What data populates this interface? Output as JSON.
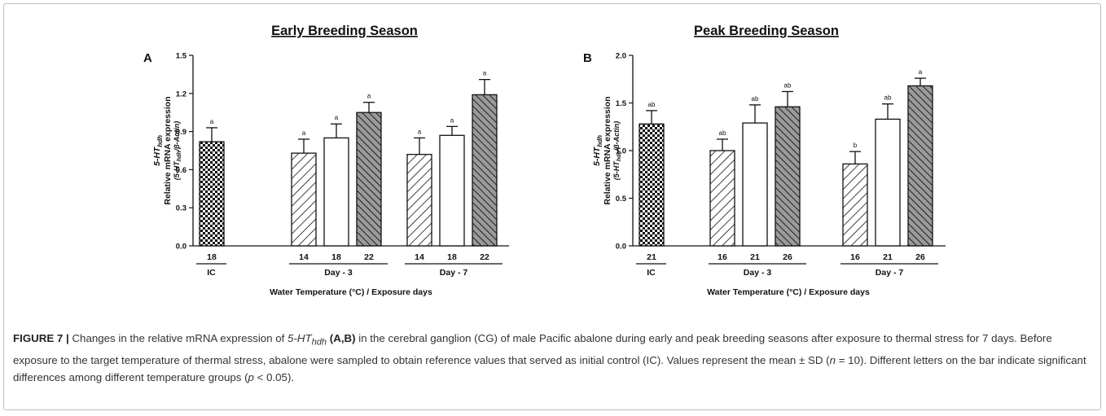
{
  "chart_data": [
    {
      "panel": "A",
      "type": "bar",
      "title": "Early Breeding Season",
      "ylabel_gene": "5-HT",
      "ylabel_gene_sub": "hdh",
      "ylabel_main": "Relative mRNA expression",
      "ylabel_ratio": [
        "(5-HT",
        "hdh",
        "/β-Actin)"
      ],
      "xlabel": "Water Temperature (°C) / Exposure days",
      "ylim": [
        0,
        1.5
      ],
      "yticks": [
        "0.0",
        "0.3",
        "0.6",
        "0.9",
        "1.2",
        "1.5"
      ],
      "groups": [
        "IC",
        "Day - 3",
        "Day - 7"
      ],
      "bars": [
        {
          "group": 0,
          "category": "18",
          "value": 0.82,
          "sd": 0.11,
          "letter": "a",
          "pattern": "checker"
        },
        {
          "group": 1,
          "category": "14",
          "value": 0.73,
          "sd": 0.11,
          "letter": "a",
          "pattern": "hatch"
        },
        {
          "group": 1,
          "category": "18",
          "value": 0.85,
          "sd": 0.11,
          "letter": "a",
          "pattern": "white"
        },
        {
          "group": 1,
          "category": "22",
          "value": 1.05,
          "sd": 0.08,
          "letter": "a",
          "pattern": "darkhatch"
        },
        {
          "group": 2,
          "category": "14",
          "value": 0.72,
          "sd": 0.13,
          "letter": "a",
          "pattern": "hatch"
        },
        {
          "group": 2,
          "category": "18",
          "value": 0.87,
          "sd": 0.07,
          "letter": "a",
          "pattern": "white"
        },
        {
          "group": 2,
          "category": "22",
          "value": 1.19,
          "sd": 0.12,
          "letter": "a",
          "pattern": "darkhatch"
        }
      ]
    },
    {
      "panel": "B",
      "type": "bar",
      "title": "Peak Breeding Season",
      "ylabel_gene": "5-HT",
      "ylabel_gene_sub": "hdh",
      "ylabel_main": "Relative mRNA expression",
      "ylabel_ratio": [
        "(5-HT",
        "hdh",
        "/β-Actin)"
      ],
      "xlabel": "Water Temperature (°C) / Exposure days",
      "ylim": [
        0,
        2.0
      ],
      "yticks": [
        "0.0",
        "0.5",
        "1.0",
        "1.5",
        "2.0"
      ],
      "groups": [
        "IC",
        "Day - 3",
        "Day - 7"
      ],
      "bars": [
        {
          "group": 0,
          "category": "21",
          "value": 1.28,
          "sd": 0.14,
          "letter": "ab",
          "pattern": "checker"
        },
        {
          "group": 1,
          "category": "16",
          "value": 1.0,
          "sd": 0.12,
          "letter": "ab",
          "pattern": "hatch"
        },
        {
          "group": 1,
          "category": "21",
          "value": 1.29,
          "sd": 0.19,
          "letter": "ab",
          "pattern": "white"
        },
        {
          "group": 1,
          "category": "26",
          "value": 1.46,
          "sd": 0.16,
          "letter": "ab",
          "pattern": "darkhatch"
        },
        {
          "group": 2,
          "category": "16",
          "value": 0.86,
          "sd": 0.13,
          "letter": "b",
          "pattern": "hatch"
        },
        {
          "group": 2,
          "category": "21",
          "value": 1.33,
          "sd": 0.16,
          "letter": "ab",
          "pattern": "white"
        },
        {
          "group": 2,
          "category": "26",
          "value": 1.68,
          "sd": 0.08,
          "letter": "a",
          "pattern": "darkhatch"
        }
      ]
    }
  ],
  "caption": {
    "figure_label": "FIGURE 7 |",
    "seg1": " Changes in the relative mRNA expression of ",
    "gene": "5-HT",
    "gene_sub": "hdh",
    "panels_ref": "(A,B)",
    "seg2": " in the cerebral ganglion (CG) of male Pacific abalone during early and peak breeding seasons after exposure to thermal stress for 7 days. Before exposure to the target temperature of thermal stress, abalone were sampled to obtain reference values that served as initial control (IC). Values represent the mean ± SD (",
    "n_var": "n",
    "seg3": " = 10). Different letters on the bar indicate significant differences among different temperature groups (",
    "p_var": "p",
    "seg4": " < 0.05)."
  }
}
